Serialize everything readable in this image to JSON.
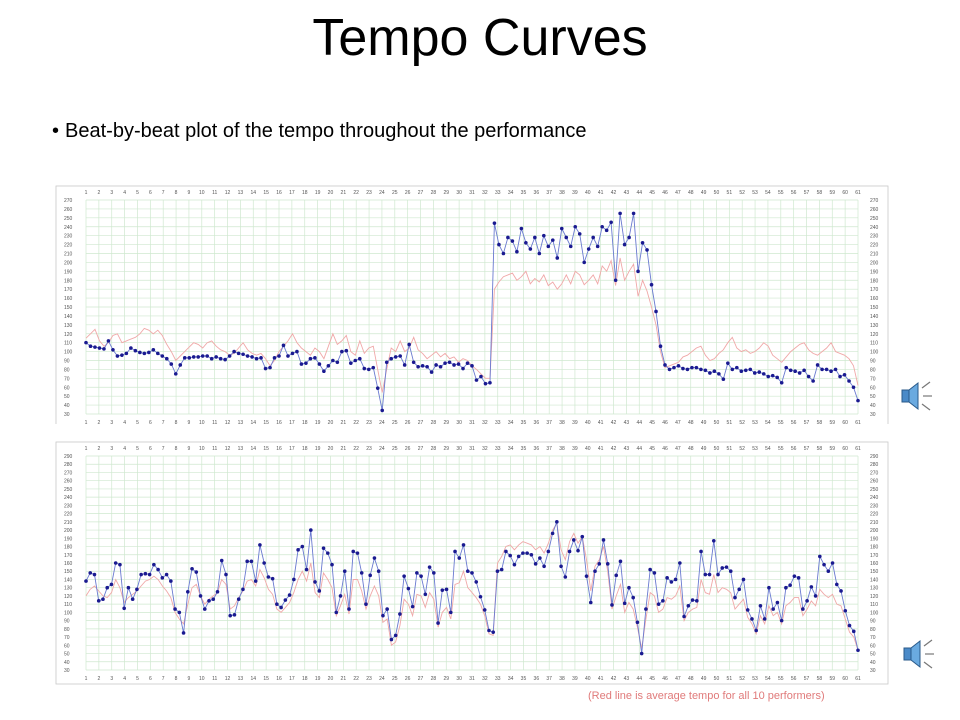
{
  "slide": {
    "title": "Tempo Curves",
    "bullet": "Beat-by-beat plot of the tempo throughout the performance",
    "caption": "(Red line is average tempo for all 10 performers)"
  },
  "icons": {
    "audio": "speaker-icon"
  },
  "colors": {
    "performer": "#2a2aa8",
    "performer_marker": "#1a1a90",
    "average": "#f0a8a8",
    "grid": "#cfe8cf",
    "frame": "#c8c8c8"
  },
  "chart_data": [
    {
      "type": "line",
      "title": "",
      "xlabel": "",
      "ylabel": "",
      "ylim": [
        30,
        270
      ],
      "x_ticks": [
        "1",
        "2",
        "3",
        "4",
        "5",
        "6",
        "7",
        "8",
        "9",
        "10",
        "11",
        "12",
        "13",
        "14",
        "15",
        "16",
        "17",
        "18",
        "19",
        "20",
        "21",
        "22",
        "23",
        "24",
        "25",
        "26",
        "27",
        "28",
        "29",
        "30",
        "31",
        "32",
        "33",
        "34",
        "35",
        "36",
        "37",
        "38",
        "39",
        "40",
        "41",
        "42",
        "43",
        "44",
        "45",
        "46",
        "47",
        "48",
        "49",
        "50",
        "51",
        "52",
        "53",
        "54",
        "55",
        "56",
        "57",
        "58",
        "59",
        "60",
        "61"
      ],
      "y_ticks": [
        30,
        40,
        50,
        60,
        70,
        80,
        90,
        100,
        110,
        120,
        130,
        140,
        150,
        160,
        170,
        180,
        190,
        200,
        210,
        220,
        230,
        240,
        250,
        260,
        270
      ],
      "grid": true,
      "series": [
        {
          "role": "performer",
          "values": [
            110,
            106,
            105,
            104,
            103,
            112,
            102,
            95,
            96,
            98,
            104,
            101,
            99,
            98,
            99,
            102,
            98,
            95,
            92,
            86,
            75,
            85,
            93,
            93,
            94,
            94,
            95,
            95,
            92,
            94,
            92,
            91,
            95,
            100,
            98,
            97,
            95,
            94,
            92,
            93,
            81,
            82,
            93,
            95,
            107,
            95,
            98,
            100,
            86,
            87,
            92,
            93,
            86,
            78,
            84,
            90,
            88,
            100,
            101,
            87,
            90,
            92,
            81,
            80,
            82,
            59,
            34,
            88,
            92,
            94,
            95,
            85,
            108,
            88,
            83,
            84,
            83,
            77,
            85,
            83,
            87,
            88,
            85,
            86,
            81,
            87,
            84,
            68,
            72,
            64,
            65,
            244,
            220,
            210,
            228,
            224,
            212,
            238,
            222,
            215,
            228,
            210,
            230,
            218,
            225,
            205,
            238,
            228,
            218,
            240,
            232,
            200,
            215,
            228,
            218,
            240,
            236,
            245,
            180,
            255,
            220,
            228,
            255,
            190,
            222,
            214,
            175,
            145,
            106,
            85,
            80,
            82,
            84,
            81,
            80,
            82,
            82,
            80,
            79,
            76,
            78,
            75,
            69,
            87,
            80,
            82,
            78,
            79,
            80,
            76,
            77,
            75,
            72,
            73,
            71,
            65,
            82,
            79,
            78,
            76,
            79,
            72,
            67,
            85,
            80,
            80,
            78,
            80,
            72,
            74,
            67,
            60,
            45
          ]
        },
        {
          "role": "average",
          "values": [
            115,
            120,
            125,
            112,
            106,
            110,
            118,
            120,
            110,
            112,
            114,
            116,
            120,
            126,
            124,
            120,
            124,
            118,
            108,
            100,
            90,
            95,
            100,
            105,
            110,
            108,
            104,
            110,
            112,
            106,
            102,
            100,
            96,
            98,
            104,
            110,
            102,
            98,
            96,
            98,
            92,
            84,
            90,
            100,
            106,
            112,
            120,
            110,
            104,
            100,
            96,
            104,
            100,
            92,
            106,
            120,
            108,
            112,
            118,
            100,
            96,
            112,
            98,
            104,
            106,
            80,
            54,
            80,
            104,
            100,
            112,
            100,
            104,
            116,
            102,
            98,
            92,
            96,
            100,
            94,
            98,
            92,
            94,
            88,
            92,
            90,
            84,
            80,
            75,
            70,
            70,
            170,
            178,
            184,
            186,
            188,
            180,
            184,
            190,
            176,
            182,
            178,
            186,
            174,
            178,
            170,
            176,
            186,
            176,
            190,
            186,
            175,
            180,
            186,
            176,
            196,
            190,
            202,
            174,
            205,
            180,
            190,
            198,
            162,
            180,
            168,
            150,
            130,
            100,
            82,
            84,
            86,
            88,
            94,
            96,
            100,
            104,
            106,
            96,
            90,
            92,
            98,
            102,
            110,
            116,
            104,
            100,
            102,
            98,
            100,
            104,
            110,
            106,
            96,
            92,
            88,
            94,
            100,
            104,
            108,
            110,
            102,
            98,
            96,
            100,
            104,
            110,
            100,
            98,
            96,
            92,
            84,
            62
          ]
        }
      ]
    },
    {
      "type": "line",
      "title": "",
      "xlabel": "",
      "ylabel": "",
      "ylim": [
        30,
        290
      ],
      "x_ticks": [
        "1",
        "2",
        "3",
        "4",
        "5",
        "6",
        "7",
        "8",
        "9",
        "10",
        "11",
        "12",
        "13",
        "14",
        "15",
        "16",
        "17",
        "18",
        "19",
        "20",
        "21",
        "22",
        "23",
        "24",
        "25",
        "26",
        "27",
        "28",
        "29",
        "30",
        "31",
        "32",
        "33",
        "34",
        "35",
        "36",
        "37",
        "38",
        "39",
        "40",
        "41",
        "42",
        "43",
        "44",
        "45",
        "46",
        "47",
        "48",
        "49",
        "50",
        "51",
        "52",
        "53",
        "54",
        "55",
        "56",
        "57",
        "58",
        "59",
        "60",
        "61"
      ],
      "y_ticks": [
        30,
        40,
        50,
        60,
        70,
        80,
        90,
        100,
        110,
        120,
        130,
        140,
        150,
        160,
        170,
        180,
        190,
        200,
        210,
        220,
        230,
        240,
        250,
        260,
        270,
        280,
        290
      ],
      "grid": true,
      "series": [
        {
          "role": "performer",
          "values": [
            138,
            148,
            146,
            114,
            116,
            130,
            134,
            160,
            158,
            105,
            130,
            116,
            128,
            146,
            147,
            146,
            158,
            152,
            142,
            146,
            138,
            104,
            100,
            75,
            125,
            153,
            149,
            120,
            104,
            114,
            116,
            125,
            163,
            146,
            96,
            97,
            116,
            128,
            162,
            162,
            138,
            182,
            160,
            143,
            141,
            110,
            106,
            115,
            121,
            140,
            176,
            180,
            152,
            200,
            137,
            126,
            178,
            172,
            158,
            100,
            120,
            150,
            104,
            174,
            172,
            148,
            110,
            145,
            166,
            150,
            96,
            104,
            67,
            72,
            98,
            144,
            129,
            107,
            148,
            144,
            122,
            155,
            148,
            87,
            127,
            128,
            100,
            174,
            166,
            182,
            150,
            148,
            137,
            119,
            103,
            78,
            76,
            150,
            152,
            174,
            169,
            158,
            168,
            172,
            172,
            170,
            159,
            166,
            156,
            174,
            196,
            210,
            156,
            143,
            174,
            188,
            175,
            192,
            144,
            112,
            150,
            159,
            188,
            159,
            109,
            145,
            162,
            111,
            130,
            118,
            88,
            50,
            104,
            152,
            148,
            110,
            114,
            142,
            137,
            140,
            160,
            95,
            108,
            115,
            114,
            174,
            146,
            146,
            187,
            146,
            154,
            155,
            150,
            118,
            128,
            140,
            103,
            92,
            78,
            108,
            92,
            130,
            104,
            112,
            90,
            130,
            133,
            144,
            142,
            104,
            114,
            131,
            120,
            168,
            158,
            150,
            160,
            134,
            126,
            102,
            84,
            77,
            54
          ]
        },
        {
          "role": "average",
          "values": [
            120,
            128,
            132,
            126,
            120,
            118,
            124,
            140,
            130,
            112,
            118,
            122,
            126,
            132,
            138,
            140,
            144,
            140,
            132,
            126,
            118,
            100,
            92,
            86,
            110,
            130,
            134,
            120,
            110,
            116,
            120,
            124,
            140,
            134,
            104,
            108,
            118,
            126,
            138,
            140,
            132,
            152,
            142,
            128,
            122,
            104,
            100,
            106,
            112,
            124,
            140,
            150,
            138,
            160,
            124,
            118,
            148,
            140,
            130,
            96,
            108,
            122,
            98,
            140,
            140,
            126,
            104,
            120,
            132,
            120,
            88,
            92,
            60,
            64,
            84,
            116,
            110,
            96,
            122,
            120,
            106,
            124,
            116,
            82,
            100,
            106,
            92,
            134,
            136,
            150,
            130,
            124,
            118,
            110,
            96,
            74,
            72,
            160,
            168,
            180,
            182,
            176,
            182,
            186,
            184,
            182,
            176,
            180,
            172,
            184,
            200,
            208,
            176,
            164,
            186,
            196,
            184,
            192,
            164,
            126,
            156,
            164,
            180,
            150,
            104,
            120,
            134,
            100,
            112,
            104,
            82,
            56,
            92,
            124,
            120,
            100,
            104,
            118,
            116,
            120,
            132,
            90,
            100,
            104,
            106,
            140,
            124,
            122,
            146,
            124,
            130,
            128,
            124,
            104,
            110,
            116,
            94,
            86,
            74,
            96,
            86,
            108,
            96,
            100,
            86,
            108,
            112,
            118,
            118,
            96,
            104,
            114,
            108,
            128,
            122,
            118,
            122,
            110,
            108,
            92,
            76,
            70,
            54
          ]
        }
      ]
    }
  ]
}
